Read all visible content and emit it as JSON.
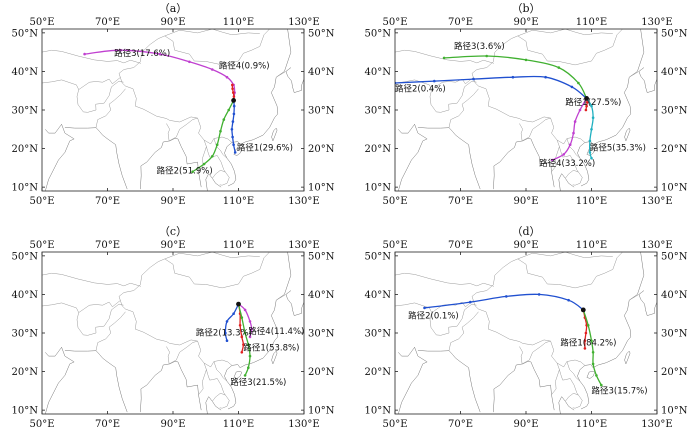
{
  "panels": [
    {
      "id": "a",
      "label": "（a）",
      "routes": [
        {
          "name": "路径4(0.9%)",
          "color": "#c040d0",
          "points": [
            [
              108.5,
              32.5
            ],
            [
              108.8,
              34.5
            ],
            [
              108.5,
              36.5
            ],
            [
              106.5,
              38.5
            ],
            [
              102,
              40.5
            ],
            [
              95,
              42.5
            ],
            [
              86,
              44.5
            ],
            [
              74,
              45.5
            ],
            [
              63,
              44.5
            ]
          ]
        },
        {
          "name": "路径1(29.6%)",
          "color": "#e02020",
          "points": [
            [
              108.5,
              32.5
            ],
            [
              108.6,
              33.5
            ],
            [
              108.4,
              34.5
            ],
            [
              108.2,
              35.5
            ],
            [
              108.1,
              36.5
            ]
          ]
        },
        {
          "name": "路径2(51.9%)",
          "color": "#2050d0",
          "points": [
            [
              108.5,
              32.5
            ],
            [
              108.7,
              31
            ],
            [
              108.6,
              29
            ],
            [
              108.3,
              27
            ],
            [
              108,
              25
            ],
            [
              108.2,
              23
            ],
            [
              108.5,
              21
            ],
            [
              109,
              19
            ]
          ]
        },
        {
          "name": "路径3(17.6%)",
          "color": "#40b030",
          "points": [
            [
              108.5,
              32.5
            ],
            [
              107,
              30
            ],
            [
              105.5,
              27.5
            ],
            [
              104.5,
              24.5
            ],
            [
              103.5,
              21
            ],
            [
              102,
              18
            ],
            [
              99.5,
              16
            ],
            [
              96,
              14
            ]
          ]
        }
      ],
      "labels": [
        {
          "text_ref": 3,
          "lon": 72,
          "lat": 44
        },
        {
          "text_ref": 0,
          "lon": 104,
          "lat": 40.7
        },
        {
          "text_ref": 1,
          "lon": 109.5,
          "lat": 19.5
        },
        {
          "text_ref": 2,
          "lon": 85,
          "lat": 13.5
        }
      ]
    },
    {
      "id": "b",
      "label": "（b）",
      "routes": [
        {
          "name": "路径1(27.5%)",
          "color": "#e02020",
          "points": [
            [
              108.5,
              33
            ],
            [
              108.7,
              32
            ],
            [
              108.5,
              31
            ],
            [
              108.3,
              30
            ]
          ]
        },
        {
          "name": "路径2(0.4%)",
          "color": "#2050d0",
          "points": [
            [
              108.5,
              33
            ],
            [
              104,
              36
            ],
            [
              96,
              38.5
            ],
            [
              86,
              38.5
            ],
            [
              74,
              38
            ],
            [
              62,
              37.5
            ],
            [
              50,
              37
            ]
          ]
        },
        {
          "name": "路径3(3.6%)",
          "color": "#40b030",
          "points": [
            [
              108.5,
              33
            ],
            [
              106,
              37
            ],
            [
              100,
              41
            ],
            [
              90,
              43
            ],
            [
              78,
              44
            ],
            [
              65,
              43.5
            ]
          ]
        },
        {
          "name": "路径4(33.2%)",
          "color": "#c040d0",
          "points": [
            [
              108.5,
              33
            ],
            [
              106.5,
              30
            ],
            [
              105,
              27
            ],
            [
              104.5,
              24
            ],
            [
              103.5,
              21
            ],
            [
              101.5,
              18.5
            ],
            [
              98,
              17
            ]
          ]
        },
        {
          "name": "路径5(35.3%)",
          "color": "#20b0c0",
          "points": [
            [
              108.5,
              33
            ],
            [
              110,
              31
            ],
            [
              110.5,
              28
            ],
            [
              110,
              25
            ],
            [
              109.5,
              22
            ],
            [
              109.5,
              19
            ],
            [
              110,
              17.5
            ]
          ]
        }
      ],
      "labels": [
        {
          "text_ref": 2,
          "lon": 68,
          "lat": 45.8
        },
        {
          "text_ref": 1,
          "lon": 50,
          "lat": 34.8
        },
        {
          "text_ref": 0,
          "lon": 102,
          "lat": 31.3
        },
        {
          "text_ref": 3,
          "lon": 94,
          "lat": 15.5
        },
        {
          "text_ref": 4,
          "lon": 109.5,
          "lat": 19.5
        }
      ]
    },
    {
      "id": "c",
      "label": "（c）",
      "routes": [
        {
          "name": "路径1(53.8%)",
          "color": "#e02020",
          "points": [
            [
              110,
              37.5
            ],
            [
              110.5,
              35
            ],
            [
              110.5,
              32
            ],
            [
              111,
              29
            ],
            [
              111.5,
              27
            ],
            [
              111,
              25
            ]
          ]
        },
        {
          "name": "路径2(13.3%)",
          "color": "#2050d0",
          "points": [
            [
              110,
              37.5
            ],
            [
              108.5,
              35
            ],
            [
              106.5,
              33
            ],
            [
              106,
              30
            ],
            [
              106.5,
              28
            ]
          ]
        },
        {
          "name": "路径3(21.5%)",
          "color": "#40b030",
          "points": [
            [
              110,
              37.5
            ],
            [
              111,
              34
            ],
            [
              112,
              30
            ],
            [
              113,
              27
            ],
            [
              113.5,
              24
            ],
            [
              113,
              21
            ],
            [
              112,
              19
            ]
          ]
        },
        {
          "name": "路径4(11.4%)",
          "color": "#c040d0",
          "points": [
            [
              110,
              37.5
            ],
            [
              112,
              36
            ],
            [
              113.5,
              33
            ],
            [
              114,
              31
            ],
            [
              113.5,
              29
            ]
          ]
        }
      ],
      "labels": [
        {
          "text_ref": 1,
          "lon": 97,
          "lat": 29.3
        },
        {
          "text_ref": 0,
          "lon": 111.5,
          "lat": 25.5
        },
        {
          "text_ref": 3,
          "lon": 113,
          "lat": 29.7
        },
        {
          "text_ref": 2,
          "lon": 107.5,
          "lat": 16.5
        }
      ]
    },
    {
      "id": "d",
      "label": "（d）",
      "routes": [
        {
          "name": "路径1(84.2%)",
          "color": "#e02020",
          "points": [
            [
              107.5,
              36
            ],
            [
              108,
              34
            ],
            [
              108.5,
              32
            ],
            [
              108.3,
              30
            ],
            [
              108,
              28
            ],
            [
              108,
              26
            ]
          ]
        },
        {
          "name": "路径2(0.1%)",
          "color": "#2050d0",
          "points": [
            [
              107.5,
              36
            ],
            [
              103,
              38.5
            ],
            [
              94,
              40
            ],
            [
              84,
              39.5
            ],
            [
              73,
              38
            ],
            [
              59,
              36.5
            ]
          ]
        },
        {
          "name": "路径3(15.7%)",
          "color": "#40b030",
          "points": [
            [
              107.5,
              36
            ],
            [
              109,
              32
            ],
            [
              110,
              28
            ],
            [
              110.5,
              25
            ],
            [
              110.5,
              22
            ],
            [
              111.5,
              19
            ],
            [
              113,
              16.5
            ]
          ]
        }
      ],
      "labels": [
        {
          "text_ref": 1,
          "lon": 54,
          "lat": 33.7
        },
        {
          "text_ref": 0,
          "lon": 100.5,
          "lat": 26.8
        },
        {
          "text_ref": 2,
          "lon": 110,
          "lat": 14.3
        }
      ]
    }
  ],
  "axes": {
    "lon_ticks": [
      "50°E",
      "70°E",
      "90°E",
      "110°E",
      "130°E"
    ],
    "lat_ticks": [
      "50°N",
      "40°N",
      "30°N",
      "20°N",
      "10°N"
    ]
  }
}
